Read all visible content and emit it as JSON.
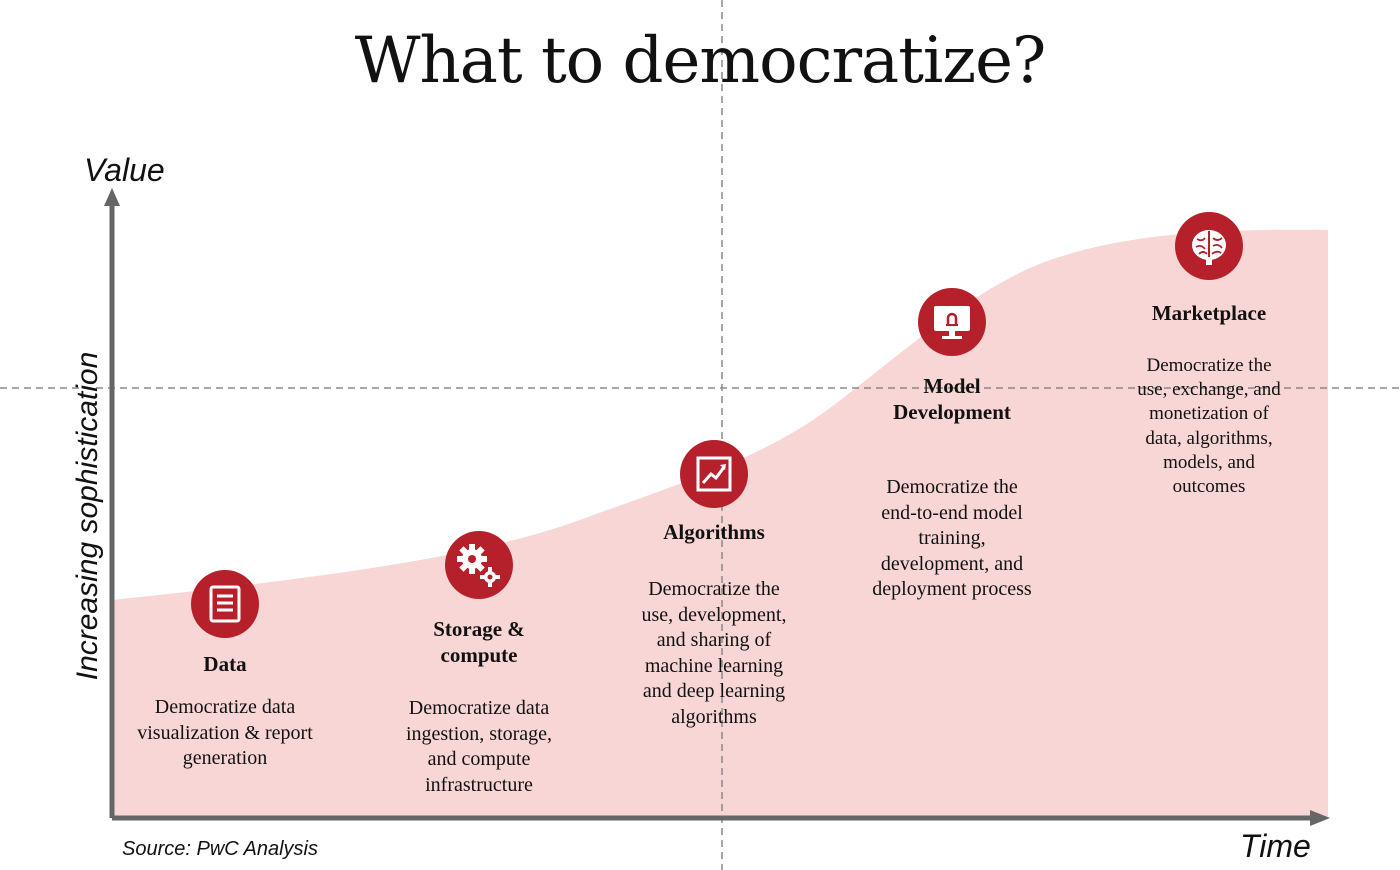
{
  "title": "What to democratize?",
  "axes": {
    "y_label": "Value",
    "y_side_label": "Increasing sophistication",
    "x_label": "Time"
  },
  "source": "Source: PwC Analysis",
  "accent_color": "#b5202a",
  "fill_color": "#f7d6d5",
  "stages": [
    {
      "title": "Data",
      "description": "Democratize data\nvisualization & report\ngeneration",
      "icon": "document-icon"
    },
    {
      "title": "Storage &\ncompute",
      "description": "Democratize data\ningestion, storage,\nand compute\ninfrastructure",
      "icon": "gears-icon"
    },
    {
      "title": "Algorithms",
      "description": "Democratize the\nuse, development,\nand sharing of\nmachine learning\nand deep learning\nalgorithms",
      "icon": "trend-chart-icon"
    },
    {
      "title": "Model\nDevelopment",
      "description": "Democratize the\nend-to-end model\ntraining,\ndevelopment, and\ndeployment process",
      "icon": "monitor-icon"
    },
    {
      "title": "Marketplace",
      "description": "Democratize the\nuse, exchange, and\nmonetization of\ndata, algorithms,\nmodels, and\noutcomes",
      "icon": "brain-icon"
    }
  ]
}
